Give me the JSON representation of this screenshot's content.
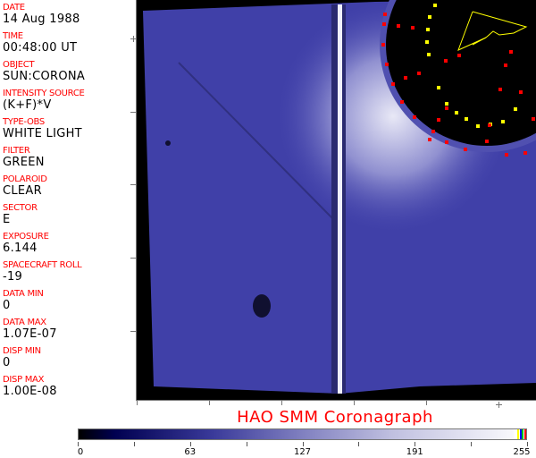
{
  "fields": [
    {
      "label": "DATE",
      "value": "14 Aug 1988"
    },
    {
      "label": "TIME",
      "value": "00:48:00 UT"
    },
    {
      "label": "OBJECT",
      "value": "SUN:CORONA"
    },
    {
      "label": "INTENSITY SOURCE",
      "value": "(K+F)*V"
    },
    {
      "label": "TYPE-OBS",
      "value": "WHITE LIGHT"
    },
    {
      "label": "FILTER",
      "value": "GREEN"
    },
    {
      "label": "POLAROID",
      "value": "CLEAR"
    },
    {
      "label": "SECTOR",
      "value": "E"
    },
    {
      "label": "EXPOSURE",
      "value": "6.144"
    },
    {
      "label": "SPACECRAFT ROLL",
      "value": "-19"
    },
    {
      "label": "DATA MIN",
      "value": "0"
    },
    {
      "label": "DATA MAX",
      "value": "1.07E-07"
    },
    {
      "label": "DISP MIN",
      "value": "0"
    },
    {
      "label": "DISP MAX",
      "value": "1.00E-08"
    }
  ],
  "title": "HAO  SMM Coronagraph",
  "colorbar": {
    "labels": [
      "0",
      "63",
      "127",
      "191",
      "255"
    ],
    "stripe_colors": [
      "#ffff00",
      "#0000ff",
      "#00c000",
      "#ff0000"
    ]
  },
  "colors": {
    "label": "#ff0000",
    "occulter": "#000000",
    "corona": "#3a3ab0"
  }
}
